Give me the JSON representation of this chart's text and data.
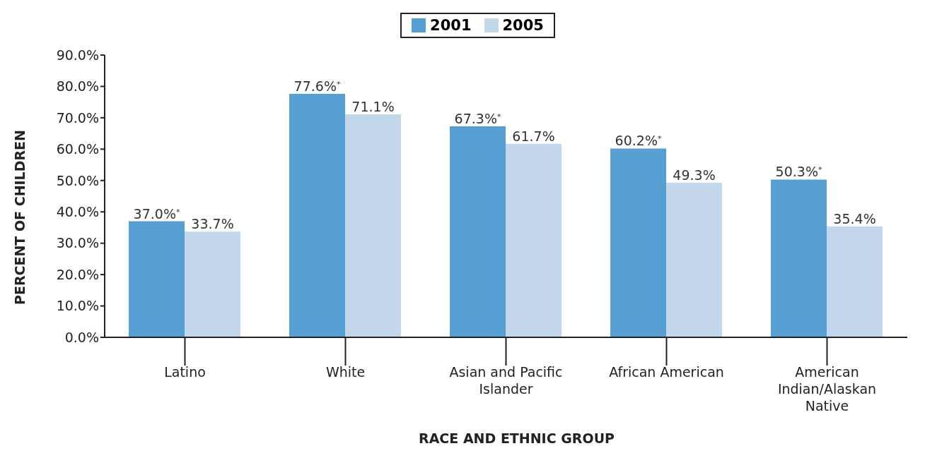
{
  "chart_data": {
    "type": "bar",
    "xlabel": "RACE AND ETHNIC GROUP",
    "ylabel": "PERCENT OF CHILDREN",
    "categories": [
      "Latino",
      "White",
      "Asian and Pacific Islander",
      "African American",
      "American Indian/Alaskan Native"
    ],
    "series": [
      {
        "name": "2001",
        "color": "#559fd3",
        "values": [
          37.0,
          77.6,
          67.3,
          60.2,
          50.3
        ],
        "value_labels": [
          "37.0%$^{*}$",
          "77.6%$^{*}$",
          "67.3%$^{*}$",
          "60.2%$^{*}$",
          "50.3%$^{*}$"
        ]
      },
      {
        "name": "2005",
        "color": "#c2d6ec",
        "values": [
          33.7,
          71.1,
          61.7,
          49.3,
          35.4
        ],
        "value_labels": [
          "33.7%",
          "71.1%",
          "61.7%",
          "49.3%",
          "35.4%"
        ]
      }
    ],
    "ylim": [
      0,
      90
    ],
    "yticks": [
      {
        "value": 0,
        "label": "0.0%"
      },
      {
        "value": 10,
        "label": "10.0%"
      },
      {
        "value": 20,
        "label": "20.0%"
      },
      {
        "value": 30,
        "label": "30.0%"
      },
      {
        "value": 40,
        "label": "40.0%"
      },
      {
        "value": 50,
        "label": "50.0%"
      },
      {
        "value": 60,
        "label": "60.0%"
      },
      {
        "value": 70,
        "label": "70.0%"
      },
      {
        "value": 80,
        "label": "80.0%"
      },
      {
        "value": 90,
        "label": "90.0%"
      }
    ],
    "grid": false,
    "legend": "top"
  }
}
